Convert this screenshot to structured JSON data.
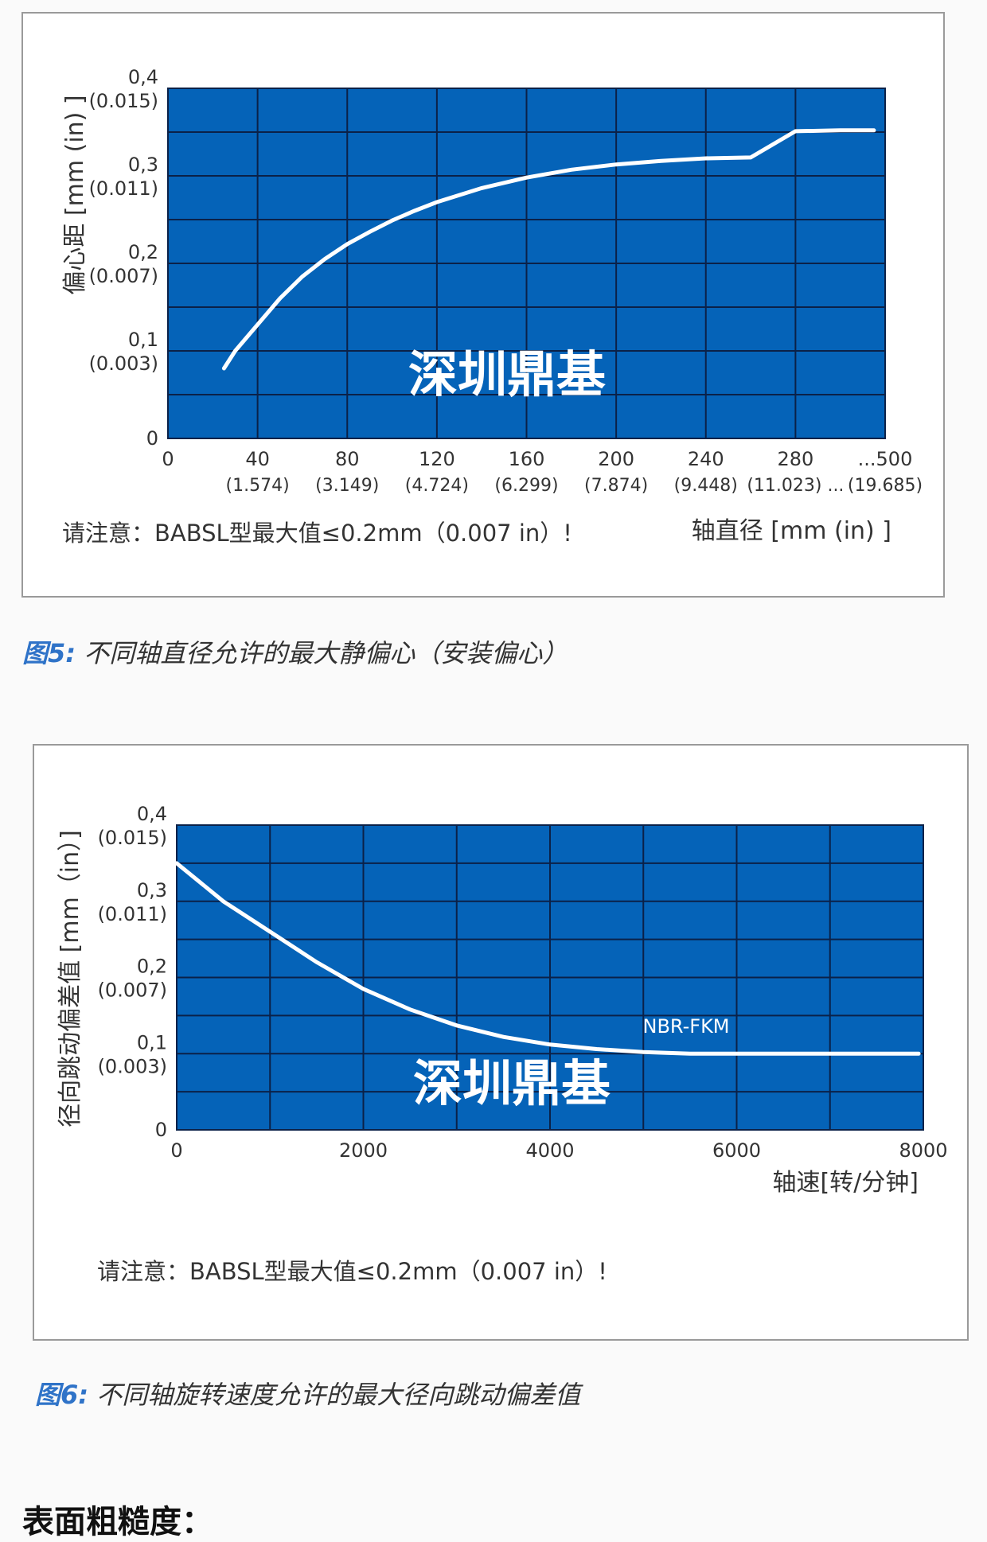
{
  "colors": {
    "plot_bg": "#0563b8",
    "grid": "#0b2148",
    "curve": "#ffffff",
    "frame": "#9a9a9a",
    "caption_accent": "#2f73c8"
  },
  "watermark": "深圳鼎基",
  "charts": [
    {
      "caption_prefix": "图5:",
      "caption_text": "不同轴直径允许的最大静偏心（安装偏心）",
      "note": "请注意：BABSL型最大值≤0.2mm（0.007 in）!",
      "xlabel": "轴直径 [mm (in) ]",
      "ylabel": "偏心距 [mm (in) ]",
      "x_ticks": [
        {
          "main": "0",
          "sub": ""
        },
        {
          "main": "40",
          "sub": "(1.574)"
        },
        {
          "main": "80",
          "sub": "(3.149)"
        },
        {
          "main": "120",
          "sub": "(4.724)"
        },
        {
          "main": "160",
          "sub": "(6.299)"
        },
        {
          "main": "200",
          "sub": "(7.874)"
        },
        {
          "main": "240",
          "sub": "(9.448)"
        },
        {
          "main": "280",
          "sub": "(11.023) ..."
        },
        {
          "main": "...500",
          "sub": "(19.685)"
        }
      ],
      "y_ticks": [
        {
          "main": "0",
          "sub": ""
        },
        {
          "main": "0,1",
          "sub": "(0.003)"
        },
        {
          "main": "0,2",
          "sub": "(0.007)"
        },
        {
          "main": "0,3",
          "sub": "(0.011)"
        },
        {
          "main": "0,4",
          "sub": "(0.015)"
        }
      ]
    },
    {
      "caption_prefix": "图6:",
      "caption_text": "不同轴旋转速度允许的最大径向跳动偏差值",
      "note": "请注意：BABSL型最大值≤0.2mm（0.007 in）!",
      "xlabel": "轴速[转/分钟]",
      "ylabel": "径向跳动偏差值 [mm（in）]",
      "series_label": "NBR-FKM",
      "x_ticks": [
        {
          "main": "0"
        },
        {
          "main": "2000"
        },
        {
          "main": "4000"
        },
        {
          "main": "6000"
        },
        {
          "main": "8000"
        }
      ],
      "y_ticks": [
        {
          "main": "0",
          "sub": ""
        },
        {
          "main": "0,1",
          "sub": "(0.003)"
        },
        {
          "main": "0,2",
          "sub": "(0.007)"
        },
        {
          "main": "0,3",
          "sub": "(0.011)"
        },
        {
          "main": "0,4",
          "sub": "(0.015)"
        }
      ]
    }
  ],
  "footer_heading": "表面粗糙度：",
  "chart_data": [
    {
      "type": "line",
      "title": "",
      "xlabel": "轴直径 [mm (in) ]",
      "ylabel": "偏心距 [mm (in) ]",
      "xlim": [
        0,
        320
      ],
      "ylim": [
        0,
        0.4
      ],
      "x_scale_note": "last tick labelled ...500",
      "grid": true,
      "series": [
        {
          "x": [
            25,
            30,
            40,
            50,
            60,
            70,
            80,
            90,
            100,
            110,
            120,
            140,
            160,
            180,
            200,
            220,
            240,
            260,
            280,
            300,
            315
          ],
          "y": [
            0.08,
            0.1,
            0.13,
            0.16,
            0.185,
            0.205,
            0.222,
            0.236,
            0.249,
            0.26,
            0.27,
            0.286,
            0.298,
            0.307,
            0.313,
            0.317,
            0.32,
            0.321,
            0.351,
            0.352,
            0.352
          ]
        }
      ]
    },
    {
      "type": "line",
      "title": "",
      "xlabel": "轴速[转/分钟]",
      "ylabel": "径向跳动偏差值 [mm（in）]",
      "xlim": [
        0,
        8000
      ],
      "ylim": [
        0,
        0.4
      ],
      "grid": true,
      "series": [
        {
          "name": "NBR-FKM",
          "x": [
            0,
            500,
            1000,
            1500,
            2000,
            2500,
            3000,
            3500,
            4000,
            4500,
            5000,
            5500,
            6000,
            7000,
            7950
          ],
          "y": [
            0.35,
            0.3,
            0.26,
            0.22,
            0.185,
            0.158,
            0.137,
            0.122,
            0.112,
            0.106,
            0.102,
            0.1,
            0.1,
            0.1,
            0.1
          ]
        }
      ]
    }
  ]
}
